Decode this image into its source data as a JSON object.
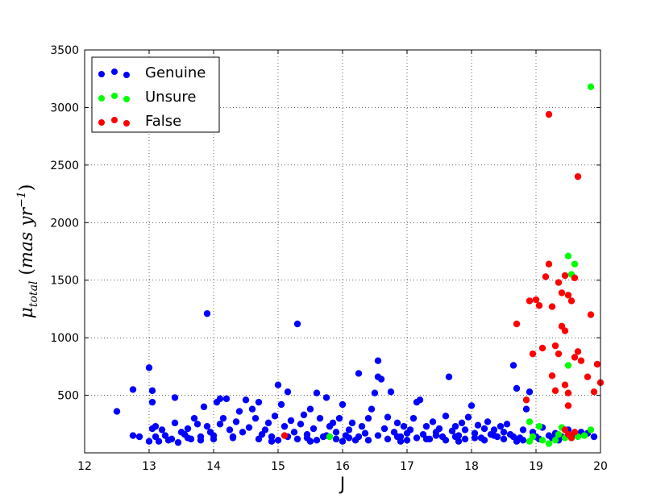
{
  "chart_data": {
    "type": "scatter",
    "xlabel": "J",
    "ylabel": {
      "symbol": "μ",
      "subscript": "total",
      "paren_open": "(",
      "units": "mas yr",
      "superscript": "−1",
      "paren_close": ")"
    },
    "xlim": [
      12,
      20
    ],
    "ylim": [
      0,
      3500
    ],
    "xticks": [
      "12",
      "13",
      "14",
      "15",
      "16",
      "17",
      "18",
      "19",
      "20"
    ],
    "yticks": [
      "500",
      "1000",
      "1500",
      "2000",
      "2500",
      "3000",
      "3500"
    ],
    "grid": true,
    "legend_position": "top-left",
    "series": [
      {
        "name": "Genuine",
        "color": "#0000ff",
        "points": [
          [
            12.5,
            360
          ],
          [
            12.75,
            550
          ],
          [
            12.75,
            150
          ],
          [
            12.85,
            140
          ],
          [
            13.0,
            740
          ],
          [
            13.05,
            540
          ],
          [
            13.05,
            440
          ],
          [
            13.0,
            100
          ],
          [
            13.05,
            210
          ],
          [
            13.1,
            230
          ],
          [
            13.15,
            100
          ],
          [
            13.2,
            200
          ],
          [
            13.25,
            150
          ],
          [
            13.3,
            110
          ],
          [
            13.35,
            120
          ],
          [
            13.4,
            260
          ],
          [
            13.4,
            480
          ],
          [
            13.45,
            90
          ],
          [
            13.5,
            180
          ],
          [
            13.55,
            160
          ],
          [
            13.6,
            210
          ],
          [
            13.65,
            120
          ],
          [
            13.7,
            300
          ],
          [
            13.75,
            250
          ],
          [
            13.8,
            140
          ],
          [
            13.85,
            400
          ],
          [
            13.9,
            1210
          ],
          [
            13.9,
            230
          ],
          [
            13.95,
            180
          ],
          [
            14.0,
            150
          ],
          [
            14.05,
            440
          ],
          [
            14.1,
            470
          ],
          [
            14.1,
            250
          ],
          [
            14.15,
            300
          ],
          [
            14.2,
            470
          ],
          [
            14.25,
            200
          ],
          [
            14.3,
            140
          ],
          [
            14.35,
            270
          ],
          [
            14.4,
            360
          ],
          [
            14.45,
            180
          ],
          [
            14.5,
            460
          ],
          [
            14.55,
            220
          ],
          [
            14.6,
            380
          ],
          [
            14.65,
            300
          ],
          [
            14.7,
            440
          ],
          [
            14.75,
            160
          ],
          [
            14.8,
            200
          ],
          [
            14.85,
            260
          ],
          [
            14.9,
            140
          ],
          [
            14.95,
            320
          ],
          [
            15.0,
            590
          ],
          [
            15.05,
            420
          ],
          [
            15.1,
            230
          ],
          [
            15.15,
            530
          ],
          [
            15.2,
            280
          ],
          [
            15.25,
            180
          ],
          [
            15.3,
            1120
          ],
          [
            15.35,
            250
          ],
          [
            15.4,
            330
          ],
          [
            15.45,
            160
          ],
          [
            15.5,
            380
          ],
          [
            15.55,
            210
          ],
          [
            15.6,
            520
          ],
          [
            15.65,
            300
          ],
          [
            15.7,
            140
          ],
          [
            15.75,
            480
          ],
          [
            15.8,
            230
          ],
          [
            15.85,
            260
          ],
          [
            15.9,
            180
          ],
          [
            15.95,
            300
          ],
          [
            16.0,
            420
          ],
          [
            16.05,
            150
          ],
          [
            16.1,
            200
          ],
          [
            16.15,
            260
          ],
          [
            16.2,
            110
          ],
          [
            16.25,
            690
          ],
          [
            16.3,
            230
          ],
          [
            16.35,
            170
          ],
          [
            16.4,
            300
          ],
          [
            16.45,
            380
          ],
          [
            16.5,
            520
          ],
          [
            16.55,
            800
          ],
          [
            16.55,
            660
          ],
          [
            16.6,
            640
          ],
          [
            16.65,
            210
          ],
          [
            16.7,
            310
          ],
          [
            16.75,
            530
          ],
          [
            16.8,
            180
          ],
          [
            16.85,
            260
          ],
          [
            16.9,
            140
          ],
          [
            16.95,
            230
          ],
          [
            17.0,
            170
          ],
          [
            17.05,
            200
          ],
          [
            17.1,
            300
          ],
          [
            17.15,
            440
          ],
          [
            17.2,
            460
          ],
          [
            17.25,
            160
          ],
          [
            17.3,
            230
          ],
          [
            17.35,
            120
          ],
          [
            17.4,
            270
          ],
          [
            17.45,
            180
          ],
          [
            17.5,
            210
          ],
          [
            17.55,
            140
          ],
          [
            17.6,
            320
          ],
          [
            17.65,
            660
          ],
          [
            17.7,
            190
          ],
          [
            17.75,
            230
          ],
          [
            17.8,
            150
          ],
          [
            17.85,
            260
          ],
          [
            17.9,
            200
          ],
          [
            17.95,
            310
          ],
          [
            18.0,
            410
          ],
          [
            18.05,
            170
          ],
          [
            18.1,
            240
          ],
          [
            18.15,
            130
          ],
          [
            18.2,
            210
          ],
          [
            18.25,
            270
          ],
          [
            18.3,
            160
          ],
          [
            18.35,
            200
          ],
          [
            18.4,
            140
          ],
          [
            18.45,
            230
          ],
          [
            18.5,
            180
          ],
          [
            18.55,
            250
          ],
          [
            18.6,
            160
          ],
          [
            18.65,
            760
          ],
          [
            18.7,
            560
          ],
          [
            18.75,
            130
          ],
          [
            18.8,
            200
          ],
          [
            18.85,
            380
          ],
          [
            18.9,
            530
          ],
          [
            18.95,
            180
          ],
          [
            19.0,
            140
          ],
          [
            19.1,
            220
          ],
          [
            19.2,
            150
          ],
          [
            19.3,
            170
          ],
          [
            19.4,
            140
          ],
          [
            19.5,
            200
          ],
          [
            19.6,
            160
          ],
          [
            19.7,
            180
          ],
          [
            19.8,
            170
          ],
          [
            19.9,
            140
          ],
          [
            13.1,
            140
          ],
          [
            13.6,
            130
          ],
          [
            14.0,
            120
          ],
          [
            14.3,
            130
          ],
          [
            14.7,
            120
          ],
          [
            15.0,
            110
          ],
          [
            15.3,
            120
          ],
          [
            15.6,
            110
          ],
          [
            15.9,
            120
          ],
          [
            16.1,
            130
          ],
          [
            16.4,
            110
          ],
          [
            16.7,
            120
          ],
          [
            17.0,
            110
          ],
          [
            17.3,
            120
          ],
          [
            17.6,
            110
          ],
          [
            17.9,
            120
          ],
          [
            18.2,
            110
          ],
          [
            18.5,
            120
          ],
          [
            18.8,
            110
          ],
          [
            19.05,
            120
          ],
          [
            19.35,
            110
          ],
          [
            13.8,
            110
          ],
          [
            14.9,
            100
          ],
          [
            15.5,
            100
          ],
          [
            16.0,
            100
          ],
          [
            16.9,
            100
          ],
          [
            17.8,
            100
          ],
          [
            18.7,
            100
          ],
          [
            15.15,
            140
          ],
          [
            15.45,
            130
          ],
          [
            15.75,
            150
          ],
          [
            16.25,
            140
          ],
          [
            16.55,
            150
          ],
          [
            16.85,
            140
          ],
          [
            17.15,
            130
          ],
          [
            17.45,
            150
          ],
          [
            17.75,
            140
          ],
          [
            18.05,
            130
          ],
          [
            18.35,
            150
          ],
          [
            18.65,
            140
          ],
          [
            19.25,
            130
          ],
          [
            19.55,
            150
          ]
        ]
      },
      {
        "name": "Unsure",
        "color": "#00ff00",
        "points": [
          [
            15.8,
            140
          ],
          [
            18.9,
            270
          ],
          [
            18.9,
            100
          ],
          [
            18.95,
            140
          ],
          [
            19.05,
            230
          ],
          [
            19.1,
            110
          ],
          [
            19.2,
            80
          ],
          [
            19.3,
            110
          ],
          [
            19.35,
            160
          ],
          [
            19.4,
            220
          ],
          [
            19.45,
            130
          ],
          [
            19.5,
            1710
          ],
          [
            19.5,
            760
          ],
          [
            19.55,
            1550
          ],
          [
            19.6,
            1640
          ],
          [
            19.65,
            140
          ],
          [
            19.75,
            150
          ],
          [
            19.85,
            200
          ],
          [
            19.85,
            3180
          ]
        ]
      },
      {
        "name": "False",
        "color": "#ff0000",
        "points": [
          [
            15.1,
            150
          ],
          [
            18.7,
            1120
          ],
          [
            18.85,
            460
          ],
          [
            18.9,
            1320
          ],
          [
            18.95,
            860
          ],
          [
            19.0,
            1330
          ],
          [
            19.05,
            1280
          ],
          [
            19.1,
            910
          ],
          [
            19.15,
            1530
          ],
          [
            19.2,
            2940
          ],
          [
            19.2,
            1640
          ],
          [
            19.25,
            1270
          ],
          [
            19.25,
            670
          ],
          [
            19.3,
            930
          ],
          [
            19.3,
            540
          ],
          [
            19.35,
            1480
          ],
          [
            19.35,
            860
          ],
          [
            19.4,
            1100
          ],
          [
            19.4,
            1390
          ],
          [
            19.45,
            1060
          ],
          [
            19.45,
            1540
          ],
          [
            19.45,
            590
          ],
          [
            19.5,
            1370
          ],
          [
            19.5,
            520
          ],
          [
            19.5,
            410
          ],
          [
            19.55,
            1320
          ],
          [
            19.6,
            830
          ],
          [
            19.6,
            1520
          ],
          [
            19.65,
            2400
          ],
          [
            19.65,
            880
          ],
          [
            19.7,
            800
          ],
          [
            19.8,
            660
          ],
          [
            19.85,
            1200
          ],
          [
            19.9,
            530
          ],
          [
            19.95,
            770
          ],
          [
            20.0,
            610
          ],
          [
            19.5,
            160
          ],
          [
            19.45,
            200
          ],
          [
            19.55,
            130
          ],
          [
            19.6,
            180
          ]
        ]
      }
    ]
  }
}
